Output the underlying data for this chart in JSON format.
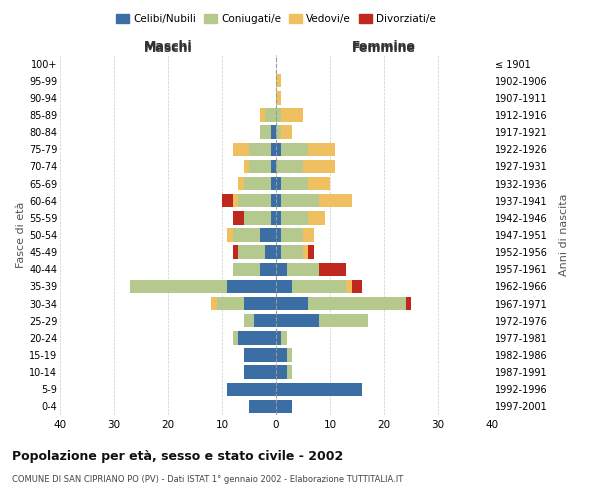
{
  "age_groups": [
    "0-4",
    "5-9",
    "10-14",
    "15-19",
    "20-24",
    "25-29",
    "30-34",
    "35-39",
    "40-44",
    "45-49",
    "50-54",
    "55-59",
    "60-64",
    "65-69",
    "70-74",
    "75-79",
    "80-84",
    "85-89",
    "90-94",
    "95-99",
    "100+"
  ],
  "birth_years": [
    "1997-2001",
    "1992-1996",
    "1987-1991",
    "1982-1986",
    "1977-1981",
    "1972-1976",
    "1967-1971",
    "1962-1966",
    "1957-1961",
    "1952-1956",
    "1947-1951",
    "1942-1946",
    "1937-1941",
    "1932-1936",
    "1927-1931",
    "1922-1926",
    "1917-1921",
    "1912-1916",
    "1907-1911",
    "1902-1906",
    "≤ 1901"
  ],
  "male": {
    "celibi": [
      5,
      9,
      6,
      6,
      7,
      4,
      6,
      9,
      3,
      2,
      3,
      1,
      1,
      1,
      1,
      1,
      1,
      0,
      0,
      0,
      0
    ],
    "coniugati": [
      0,
      0,
      0,
      0,
      1,
      2,
      5,
      18,
      5,
      5,
      5,
      5,
      6,
      5,
      4,
      4,
      2,
      2,
      0,
      0,
      0
    ],
    "vedovi": [
      0,
      0,
      0,
      0,
      0,
      0,
      1,
      0,
      0,
      0,
      1,
      0,
      1,
      1,
      1,
      3,
      0,
      1,
      0,
      0,
      0
    ],
    "divorziati": [
      0,
      0,
      0,
      0,
      0,
      0,
      0,
      0,
      0,
      1,
      0,
      2,
      2,
      0,
      0,
      0,
      0,
      0,
      0,
      0,
      0
    ]
  },
  "female": {
    "nubili": [
      3,
      16,
      2,
      2,
      1,
      8,
      6,
      3,
      2,
      1,
      1,
      1,
      1,
      1,
      0,
      1,
      0,
      0,
      0,
      0,
      0
    ],
    "coniugate": [
      0,
      0,
      1,
      1,
      1,
      9,
      18,
      10,
      6,
      4,
      4,
      5,
      7,
      5,
      5,
      5,
      1,
      1,
      0,
      0,
      0
    ],
    "vedove": [
      0,
      0,
      0,
      0,
      0,
      0,
      0,
      1,
      0,
      1,
      2,
      3,
      6,
      4,
      6,
      5,
      2,
      4,
      1,
      1,
      0
    ],
    "divorziate": [
      0,
      0,
      0,
      0,
      0,
      0,
      1,
      2,
      5,
      1,
      0,
      0,
      0,
      0,
      0,
      0,
      0,
      0,
      0,
      0,
      0
    ]
  },
  "colors": {
    "celibi": "#3a6ea5",
    "coniugati": "#b5c98e",
    "vedovi": "#f0c060",
    "divorziati": "#c0281e"
  },
  "title": "Popolazione per età, sesso e stato civile - 2002",
  "subtitle": "COMUNE DI SAN CIPRIANO PO (PV) - Dati ISTAT 1° gennaio 2002 - Elaborazione TUTTITALIA.IT",
  "xlabel_left": "Maschi",
  "xlabel_right": "Femmine",
  "ylabel_left": "Fasce di età",
  "ylabel_right": "Anni di nascita",
  "xlim": 40,
  "legend_labels": [
    "Celibi/Nubili",
    "Coniugati/e",
    "Vedovi/e",
    "Divorziati/e"
  ],
  "bg_color": "#ffffff",
  "grid_color": "#cccccc"
}
